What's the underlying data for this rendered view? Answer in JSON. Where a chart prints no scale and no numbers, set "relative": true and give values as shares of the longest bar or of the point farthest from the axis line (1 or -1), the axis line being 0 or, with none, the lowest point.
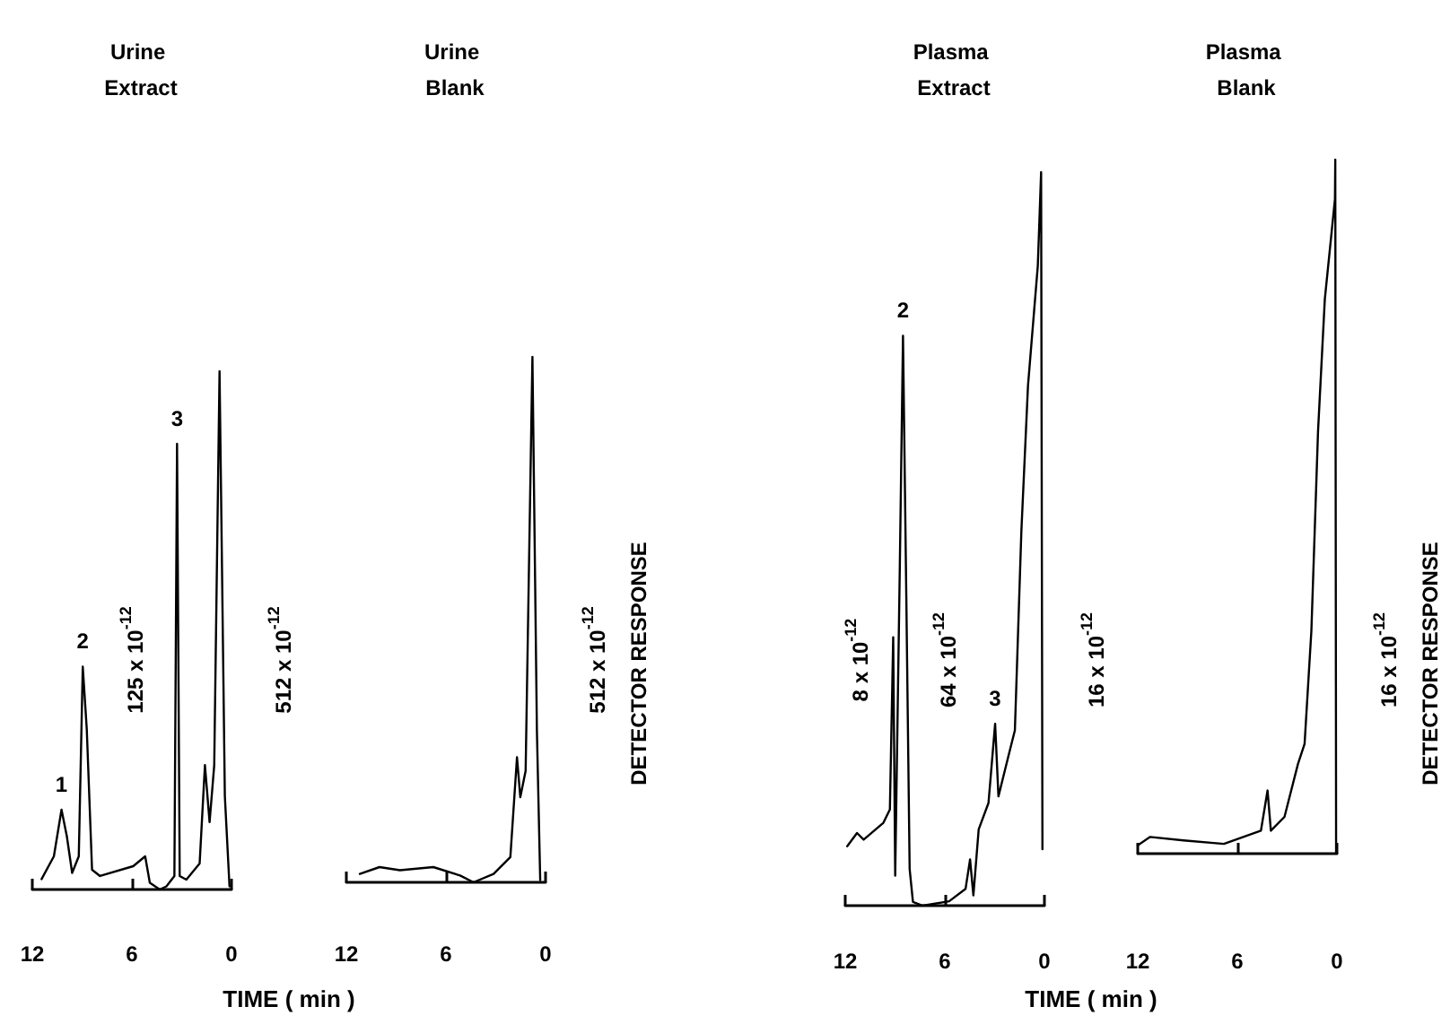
{
  "chart_data": [
    {
      "type": "line",
      "title": "Urine Extract",
      "xlabel": "TIME ( min )",
      "relative": true,
      "xlim": [
        12,
        0
      ],
      "xticks": [
        12,
        6,
        0
      ],
      "x": [
        11.44,
        10.7,
        10.24,
        9.92,
        9.6,
        9.2,
        8.96,
        8.72,
        8.4,
        7.92,
        5.92,
        5.2,
        4.92,
        4.32,
        3.92,
        3.44,
        3.28,
        3.12,
        2.72,
        1.92,
        1.6,
        1.32,
        1.04,
        0.72,
        0.4,
        0.12
      ],
      "series": [
        {
          "color": "#000000",
          "values": [
            0.02,
            0.064,
            0.154,
            0.103,
            0.032,
            0.064,
            0.43,
            0.31,
            0.038,
            0.026,
            0.045,
            0.064,
            0.013,
            0,
            0.006,
            0.026,
            0.86,
            0.026,
            0.019,
            0.05,
            0.24,
            0.13,
            0.24,
            1,
            0.18,
            0.006
          ]
        }
      ],
      "annotations": [
        {
          "text": "1",
          "x": 10.24,
          "y": 0.154
        },
        {
          "text": "2",
          "x": 8.96,
          "y": 0.43
        },
        {
          "text": "3",
          "x": 3.28,
          "y": 0.86
        },
        "125 x 10$^{-12}$",
        "512 x 10$^{-12}$"
      ]
    },
    {
      "type": "line",
      "title": "Urine Blank",
      "ylabel": "DETECTOR RESPONSE",
      "relative": true,
      "xlim": [
        12,
        0
      ],
      "xticks": [
        12,
        6,
        0
      ],
      "x": [
        11.19,
        10.0,
        8.77,
        6.76,
        5.15,
        4.34,
        3.13,
        2.12,
        1.72,
        1.52,
        1.2,
        0.79,
        0.52,
        0.32
      ],
      "series": [
        {
          "color": "#000000",
          "values": [
            0.016,
            0.029,
            0.023,
            0.029,
            0.013,
            0,
            0.016,
            0.048,
            0.238,
            0.162,
            0.212,
            1,
            0.288,
            0.004
          ]
        }
      ],
      "annotations": [
        "512 x 10$^{-12}$"
      ]
    },
    {
      "type": "line",
      "title": "Plasma Extract",
      "xlabel": "TIME ( min )",
      "relative": true,
      "xlim": [
        12,
        0
      ],
      "xticks": [
        12,
        6,
        0
      ],
      "x": [
        11.88,
        11.29,
        10.89,
        9.7,
        9.31,
        9.11,
        8.99,
        8.71,
        8.52,
        8.32,
        8.12,
        7.92,
        7.33,
        5.74,
        4.75,
        4.48,
        4.28,
        3.96,
        3.37,
        2.97,
        2.77,
        2.18,
        1.78,
        1.39,
        0.99,
        0.4,
        0.2,
        0.12
      ],
      "series": [
        {
          "color": "#000000",
          "values": [
            0.081,
            0.099,
            0.09,
            0.113,
            0.131,
            0.366,
            0.041,
            0.465,
            0.777,
            0.42,
            0.05,
            0.005,
            0,
            0.006,
            0.023,
            0.063,
            0.014,
            0.104,
            0.14,
            0.248,
            0.149,
            0.203,
            0.239,
            0.51,
            0.709,
            0.872,
            1,
            0.077
          ]
        }
      ],
      "annotations": [
        {
          "text": "2",
          "x": 8.52,
          "y": 0.777
        },
        {
          "text": "3",
          "x": 2.97,
          "y": 0.248
        },
        "8 x 10$^{-12}$",
        "64 x 10$^{-12}$",
        "16 x 10$^{-12}$"
      ]
    },
    {
      "type": "line",
      "title": "Plasma Blank",
      "ylabel": "DETECTOR RESPONSE",
      "relative": true,
      "xlim": [
        12,
        0
      ],
      "xticks": [
        12,
        6,
        0
      ],
      "x": [
        12,
        11.27,
        9.24,
        6.81,
        4.58,
        4.18,
        3.98,
        3.16,
        2.35,
        1.95,
        1.54,
        1.14,
        0.73,
        0.12,
        0.1,
        0.05
      ],
      "series": [
        {
          "color": "#000000",
          "values": [
            0.012,
            0.024,
            0.019,
            0.014,
            0.033,
            0.091,
            0.033,
            0.053,
            0.129,
            0.158,
            0.321,
            0.608,
            0.799,
            0.943,
            1,
            0
          ]
        }
      ],
      "annotations": [
        "16 x 10$^{-12}$"
      ]
    }
  ]
}
